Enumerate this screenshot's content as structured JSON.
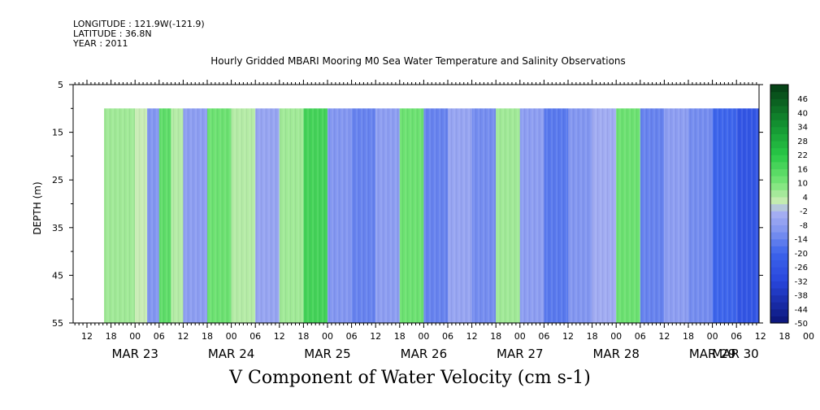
{
  "header": {
    "longitude": "LONGITUDE : 121.9W(-121.9)",
    "latitude": "LATITUDE : 36.8N",
    "year": "YEAR : 2011"
  },
  "chart_data": {
    "type": "heatmap",
    "title": "Hourly Gridded MBARI Mooring M0 Sea Water Temperature and Salinity Observations",
    "xlabel": "V Component of Water Velocity (cm s-1)",
    "ylabel": "DEPTH (m)",
    "ylim": [
      55,
      5
    ],
    "yticks": [
      5,
      15,
      25,
      35,
      45,
      55
    ],
    "data_depth_range": [
      10,
      55
    ],
    "x_hour_labels": [
      "12",
      "18",
      "00",
      "06",
      "12",
      "18",
      "00",
      "06",
      "12",
      "18",
      "00",
      "06",
      "12",
      "18",
      "00",
      "06",
      "12",
      "18",
      "00",
      "06",
      "12",
      "18",
      "00",
      "06",
      "12",
      "18",
      "00",
      "06",
      "12",
      "18",
      "00",
      "06"
    ],
    "x_date_labels": [
      "MAR 23",
      "MAR 24",
      "MAR 25",
      "MAR 26",
      "MAR 27",
      "MAR 28",
      "MAR 29",
      "MAR 30"
    ],
    "colorbar_labels": [
      "46",
      "40",
      "34",
      "28",
      "22",
      "16",
      "10",
      "4",
      "-2",
      "-8",
      "-14",
      "-20",
      "-26",
      "-32",
      "-38",
      "-44",
      "-50"
    ],
    "colorbar_range": [
      -50,
      52
    ],
    "colors": {
      "strong_negative": "#0a1a8a",
      "negative": "#3a5ee8",
      "weak_negative": "#a8b0f0",
      "near_zero": "#c8ecb0",
      "positive": "#30d850",
      "strong_positive": "#0a5a1a"
    },
    "velocity_bands": [
      {
        "time": "MAR 22 18",
        "v": 6
      },
      {
        "time": "MAR 23 00",
        "v": 2
      },
      {
        "time": "MAR 23 03",
        "v": -10
      },
      {
        "time": "MAR 23 06",
        "v": 14
      },
      {
        "time": "MAR 23 09",
        "v": 4
      },
      {
        "time": "MAR 23 12",
        "v": -8
      },
      {
        "time": "MAR 23 18",
        "v": 12
      },
      {
        "time": "MAR 24 00",
        "v": 4
      },
      {
        "time": "MAR 24 06",
        "v": -6
      },
      {
        "time": "MAR 24 12",
        "v": 6
      },
      {
        "time": "MAR 24 18",
        "v": 18
      },
      {
        "time": "MAR 25 00",
        "v": -10
      },
      {
        "time": "MAR 25 06",
        "v": -14
      },
      {
        "time": "MAR 25 12",
        "v": -8
      },
      {
        "time": "MAR 25 18",
        "v": 12
      },
      {
        "time": "MAR 26 00",
        "v": -14
      },
      {
        "time": "MAR 26 06",
        "v": -6
      },
      {
        "time": "MAR 26 12",
        "v": -12
      },
      {
        "time": "MAR 26 18",
        "v": 6
      },
      {
        "time": "MAR 27 00",
        "v": -8
      },
      {
        "time": "MAR 27 06",
        "v": -16
      },
      {
        "time": "MAR 27 12",
        "v": -10
      },
      {
        "time": "MAR 27 18",
        "v": -4
      },
      {
        "time": "MAR 28 00",
        "v": 12
      },
      {
        "time": "MAR 28 06",
        "v": -14
      },
      {
        "time": "MAR 28 12",
        "v": -8
      },
      {
        "time": "MAR 28 18",
        "v": -12
      },
      {
        "time": "MAR 29 00",
        "v": -20
      },
      {
        "time": "MAR 29 06",
        "v": -26
      },
      {
        "time": "MAR 29 12",
        "v": -20
      },
      {
        "time": "MAR 29 18",
        "v": -14
      },
      {
        "time": "MAR 30 00",
        "v": -24
      }
    ]
  }
}
